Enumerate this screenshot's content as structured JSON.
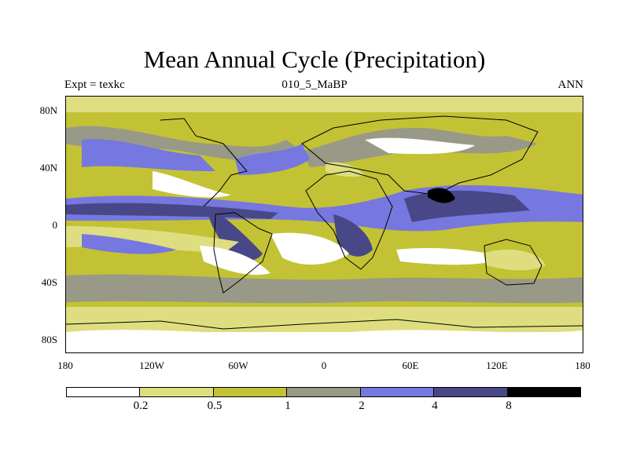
{
  "title": "Mean Annual Cycle (Precipitation)",
  "experiment_label": "Expt = texkc",
  "case_label": "010_5_MaBP",
  "season_label": "ANN",
  "lat_labels": [
    "80N",
    "40N",
    "0",
    "40S",
    "80S"
  ],
  "lon_labels": [
    "180",
    "120W",
    "60W",
    "0",
    "60E",
    "120E",
    "180"
  ],
  "colorbar": {
    "colors": [
      "#ffffff",
      "#dede80",
      "#c3c234",
      "#999988",
      "#7777e0",
      "#484888",
      "#000000"
    ],
    "labels": [
      "0.2",
      "0.5",
      "1",
      "2",
      "4",
      "8"
    ]
  }
}
